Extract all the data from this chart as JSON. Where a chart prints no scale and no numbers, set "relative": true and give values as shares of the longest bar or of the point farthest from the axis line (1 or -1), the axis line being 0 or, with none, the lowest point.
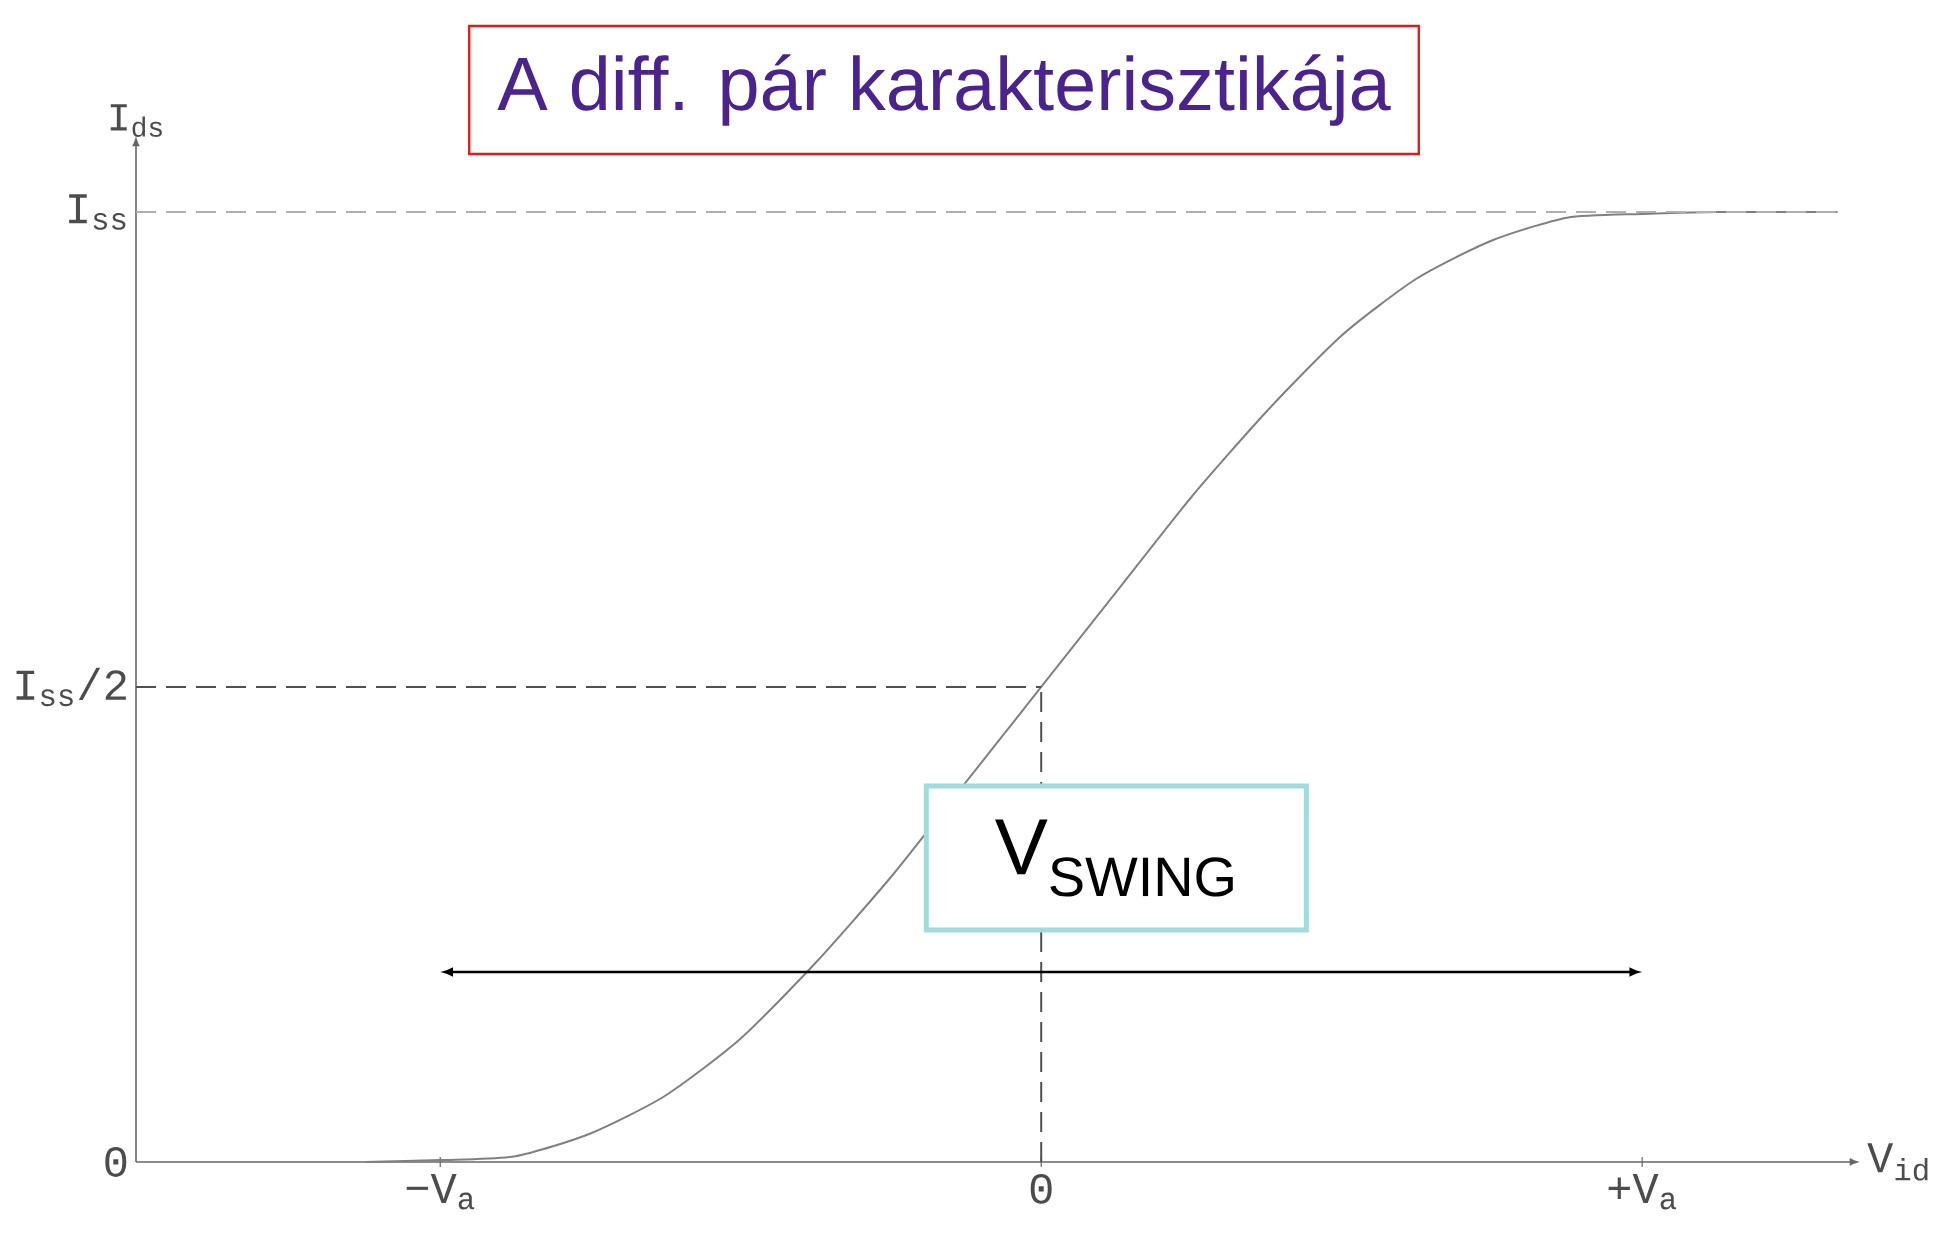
{
  "chart_data": {
    "type": "line",
    "title": "A diff. pár karakterisztikája",
    "xlabel": "V$_{id}$",
    "ylabel": "I$_{ds}$",
    "relative": true,
    "categories": [
      null,
      null,
      null,
      null,
      "−V$_{a}$",
      null,
      null,
      null,
      null,
      null,
      null,
      null,
      "0",
      null,
      null,
      null,
      null,
      null,
      null,
      null,
      "+V$_{a}$",
      null,
      null
    ],
    "series": [
      {
        "color": "#808080",
        "values": [
          null,
          null,
          null,
          0,
          0.002,
          0.006,
          0.03,
          0.07,
          0.13,
          0.21,
          0.3,
          0.4,
          0.5,
          0.6,
          0.7,
          0.79,
          0.87,
          0.93,
          0.97,
          0.994,
          0.998,
          1,
          1
        ]
      }
    ],
    "ref_lines": [
      {
        "axis": "y",
        "value": 1,
        "label": "I$_{ss}$",
        "color": "#b0b0b0",
        "line_style": "dashed"
      },
      {
        "axis": "y",
        "value": 0.5,
        "label": "I$_{ss}$/2",
        "color": "#505050",
        "line_style": "dashed"
      },
      {
        "axis": "x",
        "value": "0",
        "color": "#505050",
        "line_style": "dashed"
      }
    ],
    "annotations": [
      "V$_{SWING}$",
      "0"
    ],
    "grid": false,
    "marker": "none",
    "line_style": "solid"
  }
}
